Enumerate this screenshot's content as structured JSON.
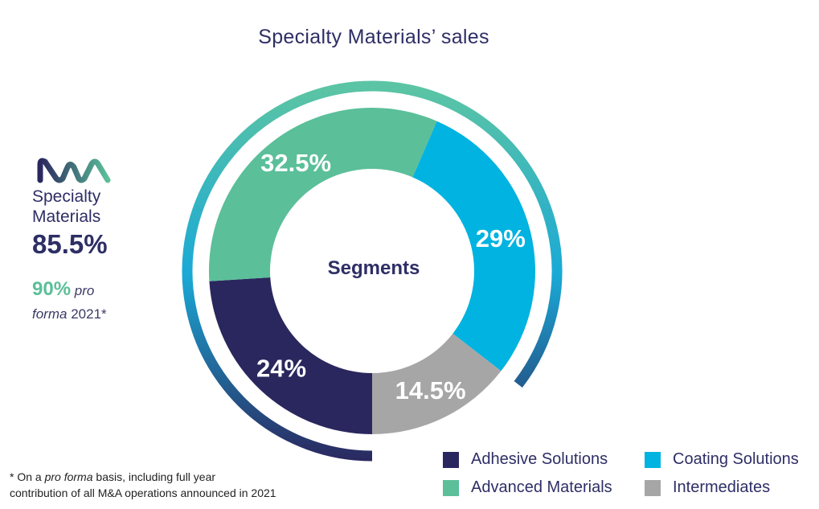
{
  "chart_data": {
    "type": "pie",
    "title": "Specialty Materials’ sales",
    "center_label": "Segments",
    "categories": [
      "Adhesive Solutions",
      "Advanced Materials",
      "Coating Solutions",
      "Intermediates"
    ],
    "values": [
      24,
      32.5,
      29,
      14.5
    ],
    "value_labels": [
      "24%",
      "32.5%",
      "29%",
      "14.5%"
    ],
    "colors": [
      "#2a275e",
      "#5bbf99",
      "#00b3e0",
      "#a6a6a6"
    ],
    "outer_ring_share": 85.5
  },
  "side": {
    "logo_text": "MA",
    "label_line1": "Specialty",
    "label_line2": "Materials",
    "share": "85.5%",
    "pro_forma_pct": "90%",
    "pro_forma_word1": "pro",
    "pro_forma_word2": "forma",
    "pro_forma_year": "2021*"
  },
  "footnote": {
    "prefix": "* On a ",
    "italic": "pro forma",
    "rest1": " basis, including full year",
    "line2": "contribution of all M&A operations announced in 2021"
  },
  "legend": [
    {
      "label": "Adhesive Solutions",
      "color": "#2a275e"
    },
    {
      "label": "Coating Solutions",
      "color": "#00b3e0"
    },
    {
      "label": "Advanced Materials",
      "color": "#5bbf99"
    },
    {
      "label": "Intermediates",
      "color": "#a6a6a6"
    }
  ]
}
